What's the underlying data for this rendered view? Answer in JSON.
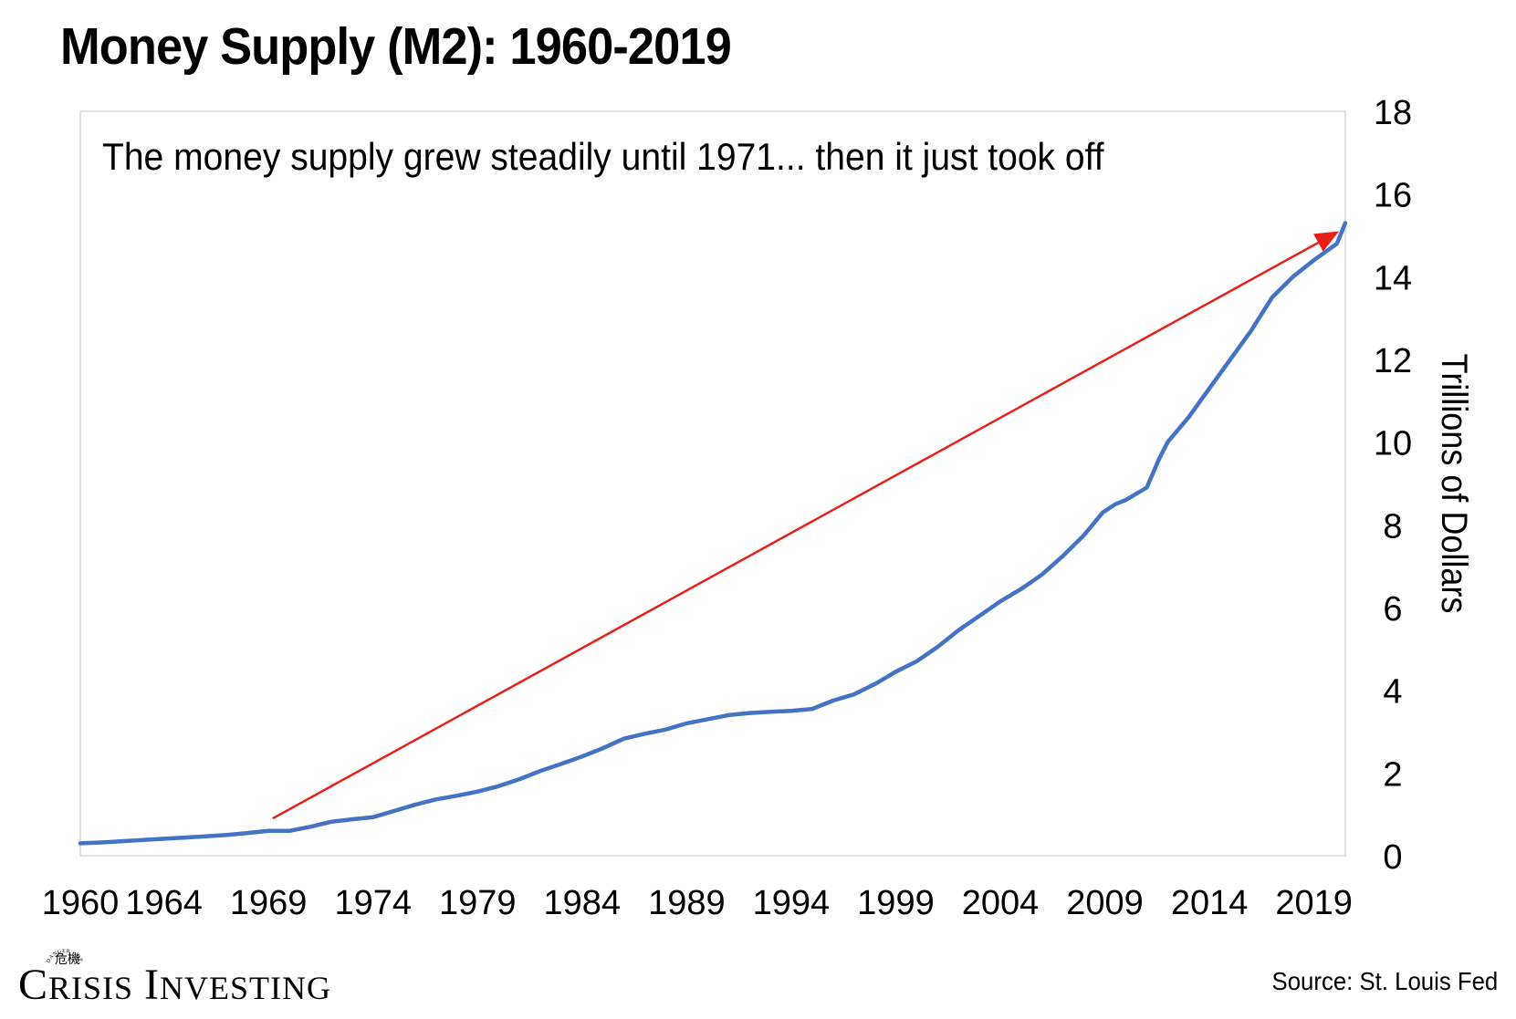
{
  "title": "Money Supply (M2): 1960-2019",
  "annotation": "The money supply grew steadily until 1971... then it just took off",
  "source": "Source: St. Louis Fed",
  "logo": {
    "tagline": "DANGER • OPPORTUNITY",
    "name": "Crisis Investing"
  },
  "colors": {
    "series": "#4472C4",
    "arrow": "#E8201A",
    "plot_border": "#D9D9D9",
    "text": "#000000"
  },
  "chart_data": {
    "type": "line",
    "title": "Money Supply (M2): 1960-2019",
    "ylabel": "Trillions of Dollars",
    "y_axis_position": "right",
    "ylim": [
      0,
      18
    ],
    "xlim": [
      1960,
      2020.5
    ],
    "yticks": [
      0,
      2,
      4,
      6,
      8,
      10,
      12,
      14,
      16,
      18
    ],
    "xticks": [
      "1960",
      "1964",
      "1969",
      "1974",
      "1979",
      "1984",
      "1989",
      "1994",
      "1999",
      "2004",
      "2009",
      "2014",
      "2019"
    ],
    "grid": false,
    "legend": "none",
    "series": [
      {
        "x": [
          1960,
          1961,
          1962,
          1963,
          1964,
          1965,
          1966,
          1967,
          1968,
          1969,
          1970,
          1971,
          1972,
          1973,
          1974,
          1975,
          1976,
          1977,
          1978,
          1979,
          1980,
          1981,
          1982,
          1983,
          1984,
          1985,
          1986,
          1987,
          1988,
          1989,
          1990,
          1991,
          1992,
          1993,
          1994,
          1995,
          1996,
          1997,
          1998,
          1999,
          2000,
          2001,
          2002,
          2003,
          2004,
          2005,
          2006,
          2007,
          2008,
          2008.9,
          2009.5,
          2010,
          2011,
          2011.6,
          2012,
          2013,
          2014,
          2015,
          2016,
          2017,
          2018,
          2019,
          2020.1,
          2020.5
        ],
        "y": [
          0.3,
          0.32,
          0.35,
          0.38,
          0.41,
          0.44,
          0.47,
          0.5,
          0.55,
          0.6,
          0.6,
          0.7,
          0.82,
          0.88,
          0.93,
          1.08,
          1.23,
          1.36,
          1.45,
          1.55,
          1.68,
          1.85,
          2.05,
          2.22,
          2.4,
          2.6,
          2.83,
          2.95,
          3.05,
          3.2,
          3.3,
          3.4,
          3.45,
          3.48,
          3.5,
          3.55,
          3.75,
          3.9,
          4.15,
          4.45,
          4.7,
          5.05,
          5.45,
          5.8,
          6.15,
          6.45,
          6.8,
          7.25,
          7.75,
          8.3,
          8.5,
          8.6,
          8.9,
          9.6,
          10.0,
          10.6,
          11.3,
          12.0,
          12.7,
          13.5,
          14.0,
          14.4,
          14.8,
          15.3
        ]
      }
    ],
    "annotations": [
      {
        "type": "arrow",
        "from": {
          "x": 1969.2,
          "y": 0.9
        },
        "to": {
          "x": 2020.2,
          "y": 15.1
        }
      }
    ]
  }
}
